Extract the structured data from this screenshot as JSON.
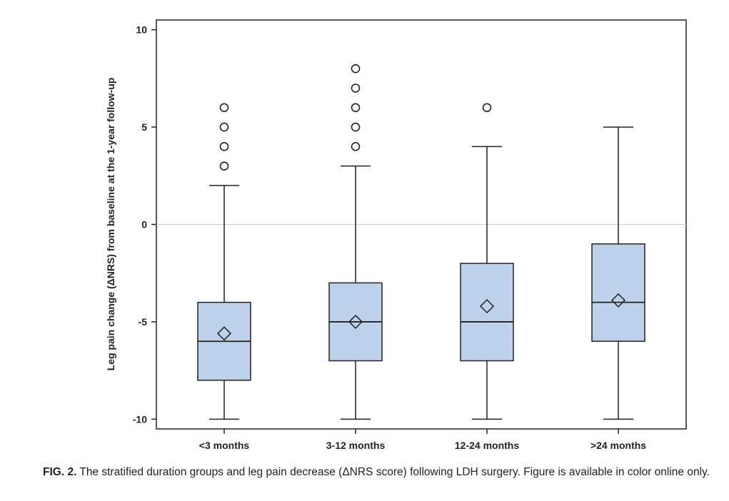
{
  "chart_data": {
    "type": "box",
    "ylabel": "Leg pain change (ΔNRS) from baseline at the 1-year follow-up",
    "xlabel": "",
    "ylim": [
      -10.5,
      10.5
    ],
    "yticks": [
      10,
      5,
      0,
      -5,
      -10
    ],
    "reference_line": 0,
    "grid": false,
    "box_color": "#bdd1ea",
    "categories": [
      "<3 months",
      "3-12 months",
      "12-24 months",
      ">24 months"
    ],
    "boxes": [
      {
        "category": "<3 months",
        "whisker_low": -10,
        "q1": -8,
        "median": -6,
        "q3": -4,
        "whisker_high": 2,
        "mean": -5.6,
        "outliers": [
          3,
          4,
          5,
          6
        ]
      },
      {
        "category": "3-12 months",
        "whisker_low": -10,
        "q1": -7,
        "median": -5,
        "q3": -3,
        "whisker_high": 3,
        "mean": -5.0,
        "outliers": [
          4,
          5,
          6,
          7,
          8
        ]
      },
      {
        "category": "12-24 months",
        "whisker_low": -10,
        "q1": -7,
        "median": -5,
        "q3": -2,
        "whisker_high": 4,
        "mean": -4.2,
        "outliers": [
          6
        ]
      },
      {
        "category": ">24 months",
        "whisker_low": -10,
        "q1": -6,
        "median": -4,
        "q3": -1,
        "whisker_high": 5,
        "mean": -3.9,
        "outliers": []
      }
    ]
  },
  "caption": {
    "label": "FIG. 2.",
    "text": "The stratified duration groups and leg pain decrease (ΔNRS score) following LDH surgery. Figure is available in color online only."
  }
}
